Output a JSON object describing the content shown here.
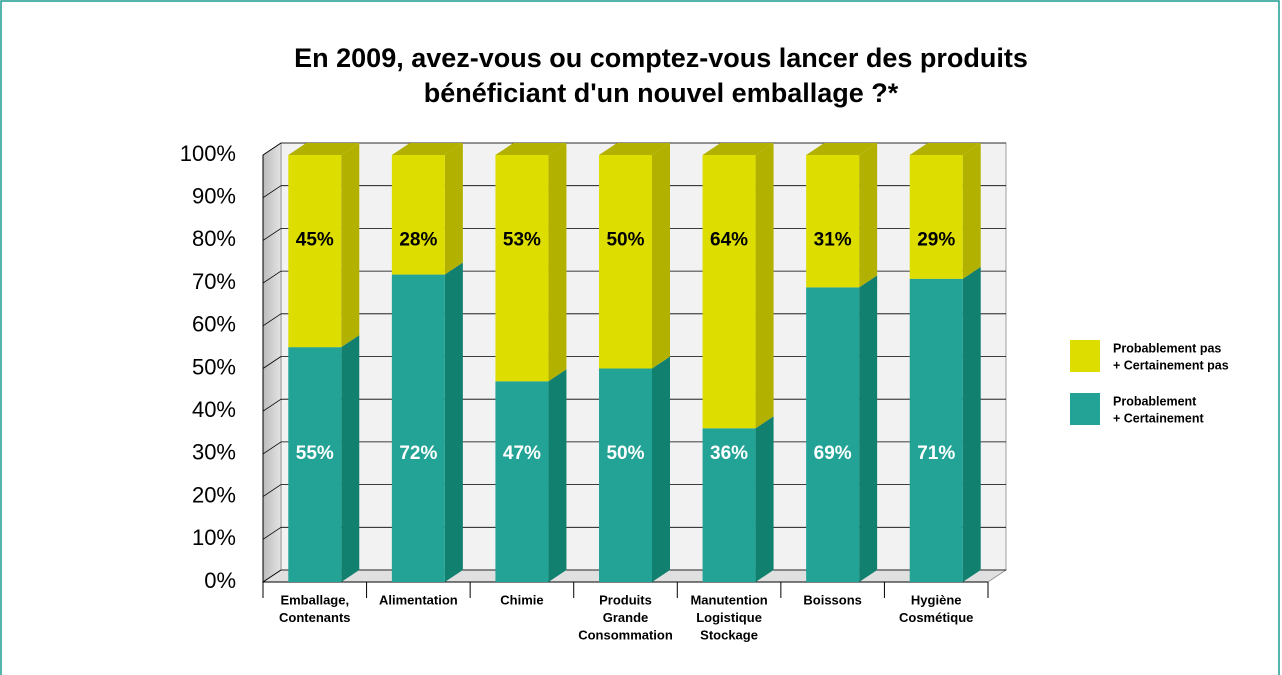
{
  "chart_data": {
    "type": "bar3d_stacked",
    "title": [
      "En 2009, avez-vous ou comptez-vous lancer des produits",
      "bénéficiant d'un nouvel emballage ?*"
    ],
    "categories": [
      [
        "Emballage,",
        "Contenants"
      ],
      [
        "Alimentation"
      ],
      [
        "Chimie"
      ],
      [
        "Produits",
        "Grande",
        "Consommation"
      ],
      [
        "Manutention",
        "Logistique",
        "Stockage"
      ],
      [
        "Boissons"
      ],
      [
        "Hygiène",
        "Cosmétique"
      ]
    ],
    "series": [
      {
        "name": [
          "Probablement",
          "+ Certainement"
        ],
        "color": "#22a396",
        "side_color": "#12806f",
        "values": [
          55,
          72,
          47,
          50,
          36,
          69,
          71
        ],
        "value_labels": [
          "55%",
          "72%",
          "47%",
          "50%",
          "36%",
          "69%",
          "71%"
        ]
      },
      {
        "name": [
          "Probablement pas",
          "+ Certainement pas"
        ],
        "color": "#dddd00",
        "side_color": "#b3b100",
        "values": [
          45,
          28,
          53,
          50,
          64,
          31,
          29
        ],
        "value_labels": [
          "45%",
          "28%",
          "53%",
          "50%",
          "64%",
          "31%",
          "29%"
        ]
      }
    ],
    "ylim": [
      0,
      100
    ],
    "yticks": [
      {
        "value": 0,
        "label": "0%"
      },
      {
        "value": 10,
        "label": "10%"
      },
      {
        "value": 20,
        "label": "20%"
      },
      {
        "value": 30,
        "label": "30%"
      },
      {
        "value": 40,
        "label": "40%"
      },
      {
        "value": 50,
        "label": "50%"
      },
      {
        "value": 60,
        "label": "60%"
      },
      {
        "value": 70,
        "label": "70%"
      },
      {
        "value": 80,
        "label": "80%"
      },
      {
        "value": 90,
        "label": "90%"
      },
      {
        "value": 100,
        "label": "100%"
      }
    ],
    "grid": true,
    "legend": "right"
  }
}
